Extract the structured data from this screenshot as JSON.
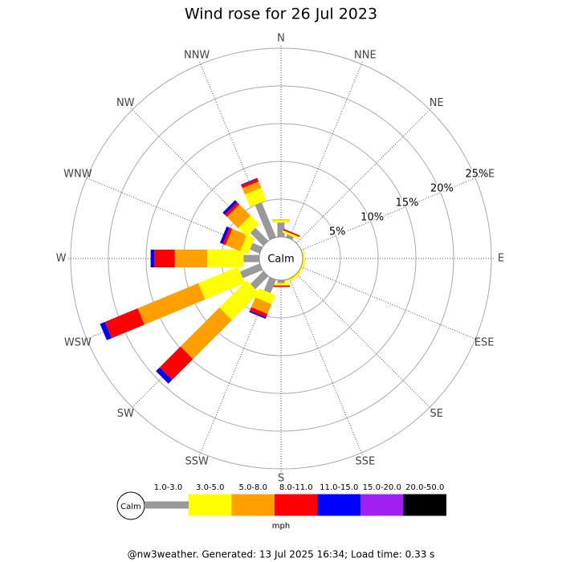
{
  "chart_data": {
    "type": "windrose",
    "title": "Wind rose for 26 Jul 2023",
    "directions": [
      "N",
      "NNE",
      "NE",
      "ENE",
      "E",
      "ESE",
      "SE",
      "SSE",
      "S",
      "SSW",
      "SW",
      "WSW",
      "W",
      "WNW",
      "NW",
      "NNW"
    ],
    "calm_label": "Calm",
    "rlim": [
      0,
      25
    ],
    "rticks": [
      {
        "value": 5,
        "label": "5%"
      },
      {
        "value": 10,
        "label": "10%"
      },
      {
        "value": 15,
        "label": "15%"
      },
      {
        "value": 20,
        "label": "20%"
      },
      {
        "value": 25,
        "label": "25%"
      }
    ],
    "series": [
      {
        "name": "1.0-3.0",
        "color": "#999999",
        "values": [
          1.9,
          0.4,
          0,
          0,
          0,
          0,
          0,
          0,
          0.4,
          1.9,
          2.4,
          2.8,
          2.1,
          1.4,
          2.4,
          5.0
        ]
      },
      {
        "name": "3.0-5.0",
        "color": "#ffff00",
        "values": [
          0.3,
          0.3,
          0,
          0,
          0.2,
          0.2,
          0.2,
          0.3,
          0.3,
          1.3,
          5.1,
          5.7,
          4.8,
          1.1,
          1.6,
          1.8
        ]
      },
      {
        "name": "5.0-8.0",
        "color": "#ffa000",
        "values": [
          0.1,
          0,
          0,
          0,
          0,
          0,
          0,
          0,
          0,
          1.4,
          7.3,
          8.7,
          4.3,
          2.1,
          2.1,
          0.9
        ]
      },
      {
        "name": "8.0-11.0",
        "color": "#ff0000",
        "values": [
          0,
          0.2,
          0,
          0,
          0,
          0,
          0,
          0,
          0.2,
          0.5,
          3.9,
          4.7,
          2.7,
          0.4,
          0.4,
          0.4
        ]
      },
      {
        "name": "11.0-15.0",
        "color": "#0000ff",
        "values": [
          0,
          0,
          0,
          0,
          0,
          0,
          0,
          0,
          0,
          0.2,
          0.7,
          0.7,
          0.5,
          0.4,
          0.4,
          0.1
        ]
      },
      {
        "name": "15.0-20.0",
        "color": "#a020f0",
        "values": [
          0,
          0,
          0,
          0,
          0,
          0,
          0,
          0,
          0,
          0,
          0,
          0,
          0,
          0,
          0,
          0
        ]
      },
      {
        "name": "20.0-50.0",
        "color": "#000000",
        "values": [
          0,
          0,
          0,
          0,
          0,
          0,
          0,
          0,
          0,
          0,
          0,
          0,
          0,
          0,
          0,
          0
        ]
      }
    ],
    "legend_unit": "mph",
    "footer": "@nw3weather. Generated: 13 Jul 2025 16:34; Load time: 0.33 s"
  }
}
